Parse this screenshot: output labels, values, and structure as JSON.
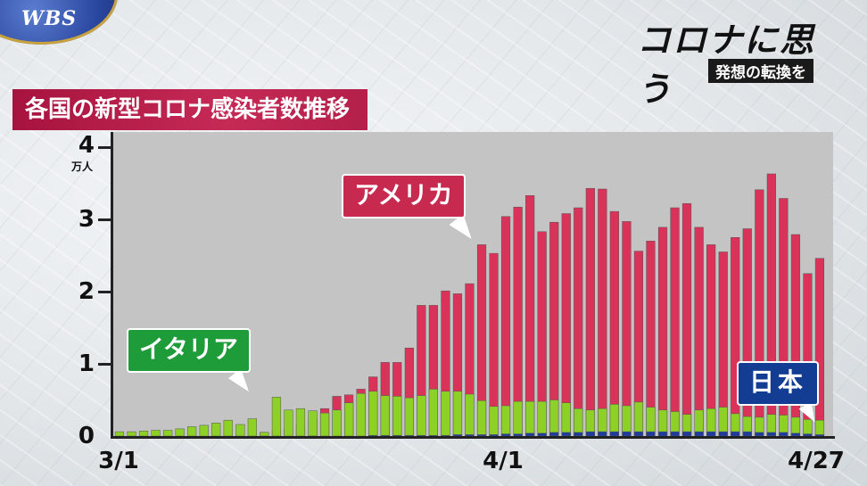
{
  "header": {
    "logo": "WBS",
    "brand_title": "コロナに思う",
    "brand_subtitle": "発想の転換を"
  },
  "chart_data": {
    "type": "bar",
    "title": "各国の新型コロナ感染者数推移",
    "yunit": "万人",
    "ylim": [
      0,
      4
    ],
    "yticks": [
      "0",
      "1",
      "2",
      "3",
      "4"
    ],
    "x_tick_labels": [
      "3/1",
      "4/1",
      "4/27"
    ],
    "x_tick_positions": [
      0,
      31,
      57
    ],
    "stacking": "overlapped",
    "series": [
      {
        "name": "アメリカ",
        "color": "#d9335a",
        "values": [
          0.0,
          0.0,
          0.0,
          0.0,
          0.0,
          0.0,
          0.01,
          0.01,
          0.01,
          0.01,
          0.01,
          0.02,
          0.05,
          0.07,
          0.1,
          0.15,
          0.23,
          0.38,
          0.55,
          0.57,
          0.65,
          0.82,
          1.02,
          1.02,
          1.22,
          1.81,
          1.81,
          2.01,
          1.97,
          2.11,
          2.65,
          2.53,
          3.04,
          3.17,
          3.33,
          2.83,
          2.96,
          3.08,
          3.16,
          3.43,
          3.42,
          3.11,
          2.97,
          2.56,
          2.7,
          2.89,
          3.16,
          3.22,
          2.89,
          2.65,
          2.55,
          2.75,
          2.87,
          3.41,
          3.63,
          3.29,
          2.79,
          2.25,
          2.46
        ]
      },
      {
        "name": "イタリア",
        "color": "#8ed126",
        "values": [
          0.06,
          0.06,
          0.07,
          0.08,
          0.08,
          0.1,
          0.13,
          0.15,
          0.18,
          0.22,
          0.16,
          0.24,
          0.05,
          0.54,
          0.36,
          0.38,
          0.35,
          0.32,
          0.36,
          0.46,
          0.59,
          0.62,
          0.56,
          0.55,
          0.53,
          0.56,
          0.65,
          0.62,
          0.62,
          0.58,
          0.49,
          0.41,
          0.42,
          0.48,
          0.48,
          0.48,
          0.5,
          0.46,
          0.38,
          0.36,
          0.38,
          0.44,
          0.42,
          0.47,
          0.4,
          0.36,
          0.34,
          0.3,
          0.36,
          0.38,
          0.4,
          0.31,
          0.27,
          0.26,
          0.3,
          0.29,
          0.26,
          0.23,
          0.22
        ]
      },
      {
        "name": "日本",
        "color": "#1e3c9e",
        "values": [
          0.0,
          0.0,
          0.0,
          0.0,
          0.0,
          0.0,
          0.0,
          0.0,
          0.0,
          0.0,
          0.0,
          0.0,
          0.0,
          0.0,
          0.0,
          0.0,
          0.0,
          0.0,
          0.0,
          0.0,
          0.0,
          0.01,
          0.01,
          0.01,
          0.01,
          0.01,
          0.01,
          0.01,
          0.02,
          0.02,
          0.02,
          0.02,
          0.03,
          0.03,
          0.04,
          0.04,
          0.05,
          0.05,
          0.05,
          0.06,
          0.06,
          0.06,
          0.06,
          0.06,
          0.06,
          0.06,
          0.06,
          0.06,
          0.06,
          0.06,
          0.06,
          0.06,
          0.06,
          0.05,
          0.05,
          0.05,
          0.04,
          0.03,
          0.02
        ]
      }
    ]
  }
}
